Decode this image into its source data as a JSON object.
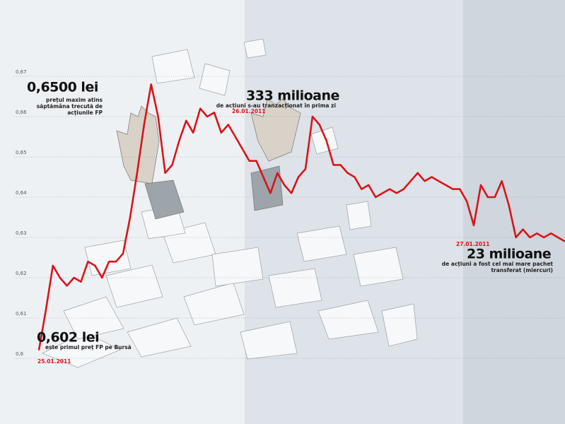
{
  "chart_data": {
    "type": "line",
    "values": [
      0.602,
      0.612,
      0.623,
      0.62,
      0.618,
      0.62,
      0.619,
      0.624,
      0.623,
      0.62,
      0.624,
      0.624,
      0.626,
      0.635,
      0.646,
      0.658,
      0.668,
      0.66,
      0.646,
      0.648,
      0.654,
      0.659,
      0.656,
      0.662,
      0.66,
      0.661,
      0.656,
      0.658,
      0.655,
      0.652,
      0.649,
      0.649,
      0.645,
      0.641,
      0.646,
      0.643,
      0.641,
      0.645,
      0.647,
      0.66,
      0.658,
      0.654,
      0.648,
      0.648,
      0.646,
      0.645,
      0.642,
      0.643,
      0.64,
      0.641,
      0.642,
      0.641,
      0.642,
      0.644,
      0.646,
      0.644,
      0.645,
      0.644,
      0.643,
      0.642,
      0.642,
      0.639,
      0.633,
      0.643,
      0.64,
      0.64,
      0.644,
      0.638,
      0.63,
      0.632,
      0.63,
      0.631,
      0.63,
      0.631,
      0.63,
      0.629
    ],
    "color": "#d9141b",
    "ylim": [
      0.6,
      0.67
    ],
    "yticks": [
      {
        "value": 0.6,
        "label": "0,6"
      },
      {
        "value": 0.61,
        "label": "0,61"
      },
      {
        "value": 0.62,
        "label": "0,62"
      },
      {
        "value": 0.63,
        "label": "0,63"
      },
      {
        "value": 0.64,
        "label": "0,64"
      },
      {
        "value": 0.65,
        "label": "0,65"
      },
      {
        "value": 0.66,
        "label": "0,66"
      },
      {
        "value": 0.67,
        "label": "0,67"
      }
    ],
    "grid": true,
    "annotations": [
      {
        "headline": "0,6500 lei",
        "lines": [
          "prețul maxim atins",
          "săptămâna trecută de",
          "acțiunile FP"
        ]
      },
      {
        "headline": "333 milioane",
        "lines": [
          "de acțiuni s-au tranzacționat în prima zi"
        ],
        "date": "26.01.2011"
      },
      {
        "headline": "23 milioane",
        "lines": [
          "de acțiuni a fost cel mai mare pachet",
          "transferat (miercuri)"
        ],
        "date": "27.01.2011"
      },
      {
        "headline": "0,602 lei",
        "lines": [
          "este primul preț FP pe Bursă"
        ],
        "date": "25.01.2011"
      }
    ]
  }
}
